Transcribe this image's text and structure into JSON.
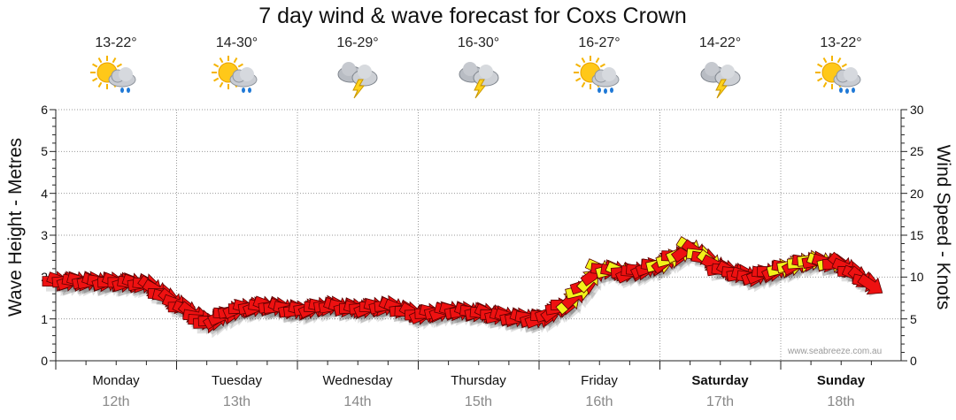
{
  "chart_data": {
    "type": "line",
    "title": "7 day wind & wave forecast for Coxs Crown",
    "ylabel_left": "Wave Height - Metres",
    "ylabel_right": "Wind Speed - Knots",
    "ylim_left": [
      0,
      6
    ],
    "ylim_right": [
      0,
      30
    ],
    "yticks_left": [
      "0",
      "1",
      "2",
      "3",
      "4",
      "5",
      "6"
    ],
    "yticks_right": [
      "0",
      "5",
      "10",
      "15",
      "20",
      "25",
      "30"
    ],
    "grid": true,
    "days": [
      {
        "name": "Monday",
        "date": "12th",
        "temp": "13-22°",
        "icon": "partly-cloudy-showers-icon",
        "bold": false
      },
      {
        "name": "Tuesday",
        "date": "13th",
        "temp": "14-30°",
        "icon": "partly-cloudy-showers-icon",
        "bold": false
      },
      {
        "name": "Wednesday",
        "date": "14th",
        "temp": "16-29°",
        "icon": "thunderstorm-icon",
        "bold": false
      },
      {
        "name": "Thursday",
        "date": "15th",
        "temp": "16-30°",
        "icon": "thunderstorm-icon",
        "bold": false
      },
      {
        "name": "Friday",
        "date": "16th",
        "temp": "16-27°",
        "icon": "sun-showers-icon",
        "bold": false
      },
      {
        "name": "Saturday",
        "date": "17th",
        "temp": "14-22°",
        "icon": "thunderstorm-icon",
        "bold": true
      },
      {
        "name": "Sunday",
        "date": "18th",
        "temp": "13-22°",
        "icon": "sun-showers-icon",
        "bold": true
      }
    ],
    "series": [
      {
        "name": "Wind",
        "unit": "knots",
        "x_days": [
          0.0,
          0.25,
          0.5,
          0.75,
          1.0,
          1.25,
          1.5,
          1.75,
          2.0,
          2.25,
          2.5,
          2.75,
          3.0,
          3.25,
          3.5,
          3.75,
          4.0,
          4.25,
          4.5,
          4.75,
          5.0,
          5.25,
          5.5,
          5.75,
          6.0,
          6.25,
          6.5,
          6.75
        ],
        "values": [
          9.5,
          9.5,
          9.4,
          9.2,
          6.8,
          4.5,
          6.2,
          6.6,
          6.0,
          6.6,
          6.2,
          6.6,
          5.5,
          6.0,
          5.8,
          5.2,
          5.0,
          7.0,
          11.0,
          10.5,
          11.5,
          13.5,
          11.0,
          10.0,
          11.0,
          12.0,
          11.5,
          9.0
        ],
        "highlight": [
          false,
          false,
          false,
          false,
          false,
          false,
          false,
          false,
          false,
          false,
          false,
          false,
          false,
          false,
          false,
          false,
          false,
          false,
          true,
          false,
          false,
          true,
          false,
          false,
          false,
          true,
          false,
          false
        ]
      }
    ],
    "colors": {
      "wind_normal": "#ee1111",
      "wind_high": "#f2f21a",
      "grid": "#999999"
    }
  },
  "watermark": "www.seabreeze.com.au"
}
